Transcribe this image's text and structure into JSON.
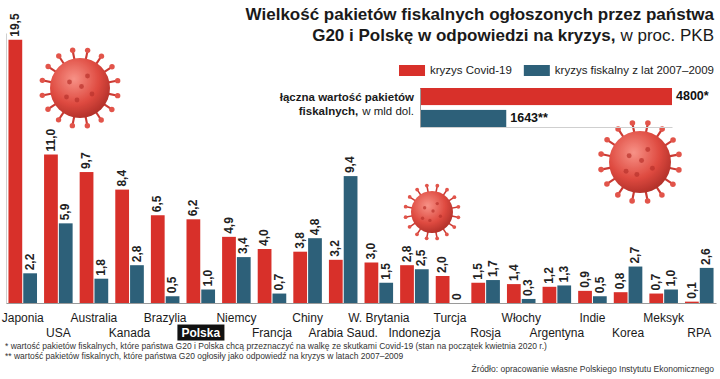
{
  "chart_data": [
    {
      "type": "bar",
      "title": "Wielkość pakietów fiskalnych ogłoszonych przez państwa G20 i Polskę w odpowiedzi na kryzys,",
      "subtitle": "w proc. PKB",
      "categories": [
        "Japonia",
        "USA",
        "Australia",
        "Kanada",
        "Brazylia",
        "Polska",
        "Niemcy",
        "Francja",
        "Chiny",
        "Arabia Saud.",
        "W. Brytania",
        "Indonezja",
        "Turcja",
        "Rosja",
        "Włochy",
        "Argentyna",
        "Indie",
        "Korea",
        "Meksyk",
        "RPA"
      ],
      "series": [
        {
          "name": "kryzys Covid-19",
          "color": "#d8302a",
          "values": [
            19.5,
            11.0,
            9.7,
            8.4,
            6.5,
            6.2,
            4.9,
            4.0,
            3.8,
            3.2,
            3.0,
            2.8,
            2.0,
            1.5,
            1.4,
            1.2,
            0.9,
            0.8,
            0.7,
            0.1
          ],
          "value_labels": [
            "19,5",
            "11,0",
            "9,7",
            "8,4",
            "6,5",
            "6,2",
            "4,9",
            "4,0",
            "3,8",
            "3,2",
            "3,0",
            "2,8",
            "2,0",
            "1,5",
            "1,4",
            "1,2",
            "0,9",
            "0,8",
            "0,7",
            "0,1"
          ]
        },
        {
          "name": "kryzys fiskalny z lat 2007–2009",
          "color": "#2d6079",
          "values": [
            2.2,
            5.9,
            1.8,
            2.8,
            0.5,
            1.0,
            3.4,
            0.7,
            4.8,
            9.4,
            1.5,
            2.5,
            0,
            1.7,
            0.3,
            1.3,
            0.5,
            2.7,
            1.0,
            2.6
          ],
          "value_labels": [
            "2,2",
            "5,9",
            "1,8",
            "2,8",
            "0,5",
            "1,0",
            "3,4",
            "0,7",
            "4,8",
            "9,4",
            "1,5",
            "2,5",
            "0",
            "1,7",
            "0,3",
            "1,3",
            "0,5",
            "2,7",
            "1,0",
            "2,6"
          ]
        }
      ],
      "ylim": [
        0,
        20
      ],
      "yticks": [],
      "grid": false,
      "legend": "top-right",
      "data_labels": true,
      "tick_labels": "x",
      "footnotes": [
        "* wartość pakietów fiskalnych, które państwa G20 i Polska chcą przeznaczyć na walkę ze skutkami Covid-19 (stan na początek kwietnia 2020 r.)",
        "** wartość pakietów fiskalnych, które państwa G20 ogłosiły jako odpowiedź na kryzys w latach 2007–2009"
      ],
      "source": "Źródło: opracowanie własne Polskiego Instytutu Ekonomicznego"
    },
    {
      "type": "bar",
      "orientation": "horizontal",
      "title": "łączna wartość pakietów fiskalnych,",
      "subtitle": "w mld dol.",
      "categories": [
        null,
        null
      ],
      "values": [
        4800,
        1643
      ],
      "value_labels": [
        "4800*",
        "1643**"
      ],
      "colors": [
        "#d8302a",
        "#2d6079"
      ],
      "xlim": [
        0,
        4800
      ],
      "xticks": [],
      "data_labels": true,
      "tick_labels": false
    }
  ]
}
